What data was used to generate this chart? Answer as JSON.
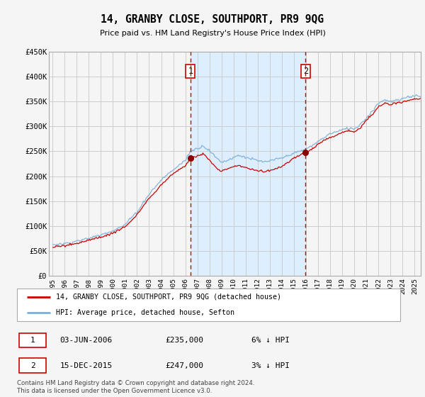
{
  "title": "14, GRANBY CLOSE, SOUTHPORT, PR9 9QG",
  "subtitle": "Price paid vs. HM Land Registry's House Price Index (HPI)",
  "ylabel_ticks": [
    "£0",
    "£50K",
    "£100K",
    "£150K",
    "£200K",
    "£250K",
    "£300K",
    "£350K",
    "£400K",
    "£450K"
  ],
  "ylim": [
    0,
    450000
  ],
  "xlim_start": 1994.7,
  "xlim_end": 2025.5,
  "sale1_date": 2006.42,
  "sale1_price": 235000,
  "sale2_date": 2015.96,
  "sale2_price": 247000,
  "legend_line1": "14, GRANBY CLOSE, SOUTHPORT, PR9 9QG (detached house)",
  "legend_line2": "HPI: Average price, detached house, Sefton",
  "footer": "Contains HM Land Registry data © Crown copyright and database right 2024.\nThis data is licensed under the Open Government Licence v3.0.",
  "hpi_color": "#7aadd4",
  "price_color": "#cc0000",
  "sale_dot_color": "#8b0000",
  "vline_color": "#cc0000",
  "shading_color": "#ddeeff",
  "background_color": "#f5f5f5",
  "grid_color": "#cccccc",
  "hpi_keypoints": [
    [
      1995.0,
      60000
    ],
    [
      1996.0,
      63000
    ],
    [
      1997.0,
      68000
    ],
    [
      1998.0,
      75000
    ],
    [
      1999.0,
      82000
    ],
    [
      2000.0,
      90000
    ],
    [
      2001.0,
      103000
    ],
    [
      2002.0,
      128000
    ],
    [
      2003.0,
      162000
    ],
    [
      2004.0,
      190000
    ],
    [
      2005.0,
      210000
    ],
    [
      2006.0,
      228000
    ],
    [
      2006.42,
      248000
    ],
    [
      2007.0,
      255000
    ],
    [
      2007.5,
      262000
    ],
    [
      2008.0,
      252000
    ],
    [
      2008.5,
      238000
    ],
    [
      2009.0,
      228000
    ],
    [
      2009.5,
      232000
    ],
    [
      2010.0,
      238000
    ],
    [
      2010.5,
      242000
    ],
    [
      2011.0,
      238000
    ],
    [
      2011.5,
      235000
    ],
    [
      2012.0,
      232000
    ],
    [
      2012.5,
      230000
    ],
    [
      2013.0,
      232000
    ],
    [
      2013.5,
      235000
    ],
    [
      2014.0,
      238000
    ],
    [
      2014.5,
      242000
    ],
    [
      2015.0,
      247000
    ],
    [
      2015.5,
      250000
    ],
    [
      2015.96,
      255000
    ],
    [
      2016.5,
      262000
    ],
    [
      2017.0,
      270000
    ],
    [
      2017.5,
      278000
    ],
    [
      2018.0,
      285000
    ],
    [
      2018.5,
      290000
    ],
    [
      2019.0,
      295000
    ],
    [
      2019.5,
      298000
    ],
    [
      2020.0,
      295000
    ],
    [
      2020.5,
      305000
    ],
    [
      2021.0,
      318000
    ],
    [
      2021.5,
      332000
    ],
    [
      2022.0,
      348000
    ],
    [
      2022.5,
      355000
    ],
    [
      2023.0,
      352000
    ],
    [
      2023.5,
      355000
    ],
    [
      2024.0,
      358000
    ],
    [
      2024.5,
      362000
    ],
    [
      2025.0,
      365000
    ]
  ],
  "prop_keypoints": [
    [
      1995.0,
      57000
    ],
    [
      1996.0,
      60000
    ],
    [
      1997.0,
      65000
    ],
    [
      1998.0,
      72000
    ],
    [
      1999.0,
      78000
    ],
    [
      2000.0,
      85000
    ],
    [
      2001.0,
      98000
    ],
    [
      2002.0,
      122000
    ],
    [
      2003.0,
      155000
    ],
    [
      2004.0,
      182000
    ],
    [
      2005.0,
      203000
    ],
    [
      2006.0,
      220000
    ],
    [
      2006.42,
      235000
    ],
    [
      2007.0,
      240000
    ],
    [
      2007.5,
      245000
    ],
    [
      2008.0,
      232000
    ],
    [
      2008.5,
      218000
    ],
    [
      2009.0,
      210000
    ],
    [
      2009.5,
      215000
    ],
    [
      2010.0,
      220000
    ],
    [
      2010.5,
      222000
    ],
    [
      2011.0,
      218000
    ],
    [
      2011.5,
      215000
    ],
    [
      2012.0,
      212000
    ],
    [
      2012.5,
      210000
    ],
    [
      2013.0,
      212000
    ],
    [
      2013.5,
      215000
    ],
    [
      2014.0,
      220000
    ],
    [
      2014.5,
      228000
    ],
    [
      2015.0,
      238000
    ],
    [
      2015.5,
      243000
    ],
    [
      2015.96,
      247000
    ],
    [
      2016.5,
      255000
    ],
    [
      2017.0,
      265000
    ],
    [
      2017.5,
      272000
    ],
    [
      2018.0,
      278000
    ],
    [
      2018.5,
      282000
    ],
    [
      2019.0,
      288000
    ],
    [
      2019.5,
      292000
    ],
    [
      2020.0,
      288000
    ],
    [
      2020.5,
      298000
    ],
    [
      2021.0,
      312000
    ],
    [
      2021.5,
      325000
    ],
    [
      2022.0,
      340000
    ],
    [
      2022.5,
      348000
    ],
    [
      2023.0,
      345000
    ],
    [
      2023.5,
      348000
    ],
    [
      2024.0,
      350000
    ],
    [
      2024.5,
      353000
    ],
    [
      2025.0,
      356000
    ]
  ]
}
